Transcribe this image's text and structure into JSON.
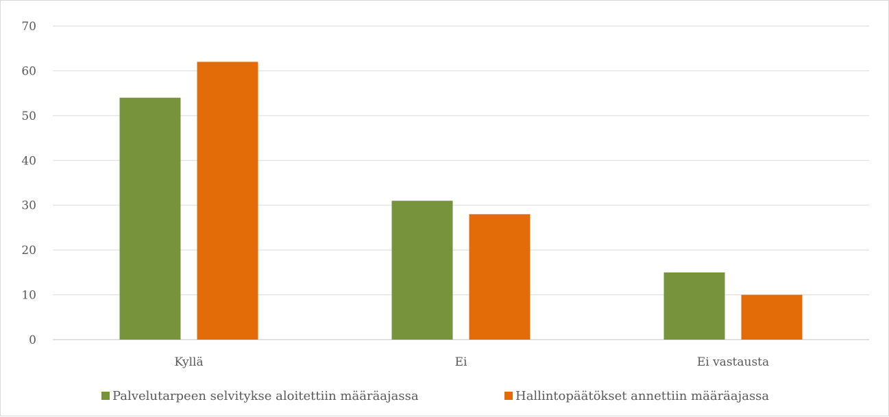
{
  "chart_data": {
    "type": "bar",
    "categories": [
      "Kyllä",
      "Ei",
      "Ei vastausta"
    ],
    "series": [
      {
        "name": "Palvelutarpeen selvitykse aloitettiin määräajassa",
        "values": [
          54,
          31,
          15
        ],
        "color": "#77933c"
      },
      {
        "name": "Hallintopäätökset annettiin määräajassa",
        "values": [
          62,
          28,
          10
        ],
        "color": "#e36c09"
      }
    ],
    "ylim": [
      0,
      70
    ],
    "yticks": [
      0,
      10,
      20,
      30,
      40,
      50,
      60,
      70
    ],
    "grid": true,
    "legend_position": "bottom"
  }
}
